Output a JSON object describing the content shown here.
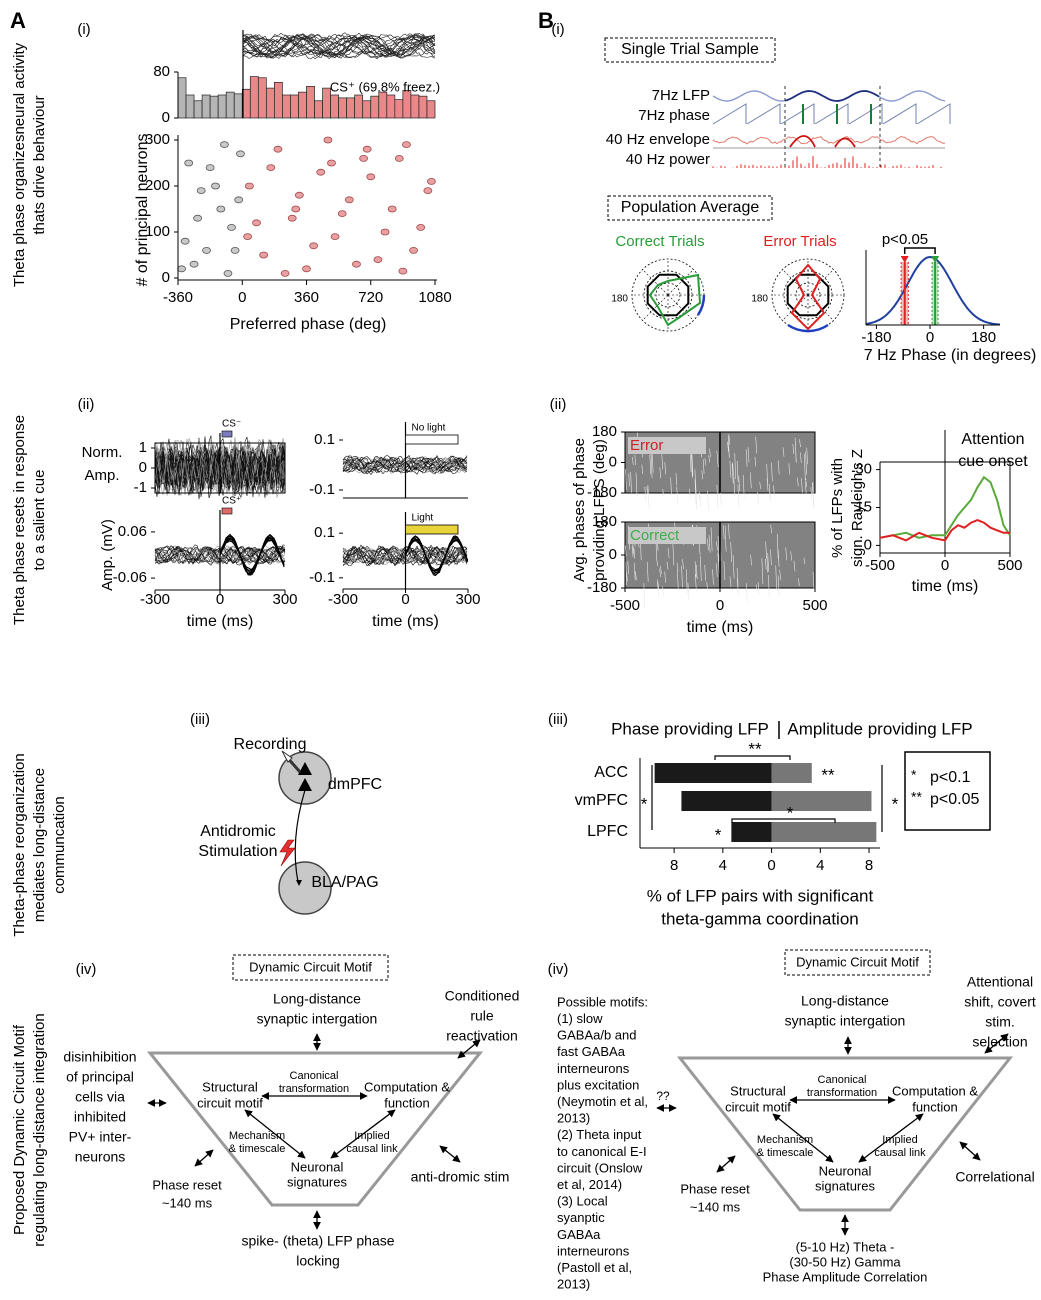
{
  "panel_letters": [
    "A",
    "B"
  ],
  "row_labels": [
    [
      "Theta phase organizesneural activity",
      "thats drive behaviour"
    ],
    [
      "Theta phase resets in response",
      "to a salient cue"
    ],
    [
      "Theta-phase reorganization",
      "mediates long-distance",
      "communcation"
    ],
    [
      "Proposed Dynamic Circuit Motif",
      "regulating long-distance integration"
    ]
  ],
  "a_i": {
    "label": "(i)",
    "annotation": "CS⁺ (69.8% freez.)",
    "xlabel": "Preferred phase (deg)",
    "ylabel": "# of principal neurons",
    "xlim": [
      -360,
      1080
    ],
    "xticks": [
      -360,
      0,
      360,
      720,
      1080
    ],
    "histogram": {
      "type": "histogram",
      "ylim": [
        0,
        80
      ],
      "yticks": [
        0,
        80
      ],
      "pre": {
        "color": "#b5b5b5",
        "bins": [
          -360,
          -315,
          -270,
          -225,
          -180,
          -135,
          -90,
          -45,
          0
        ],
        "counts": [
          70,
          40,
          30,
          40,
          38,
          40,
          45,
          42
        ]
      },
      "post": {
        "color": "#e8888b",
        "bins": [
          0,
          45,
          90,
          135,
          180,
          225,
          270,
          315,
          360,
          405,
          450,
          495,
          540,
          585,
          630,
          675,
          720,
          765,
          810,
          855,
          900,
          945,
          990,
          1035,
          1080
        ],
        "counts": [
          50,
          72,
          70,
          52,
          62,
          40,
          40,
          45,
          55,
          30,
          52,
          40,
          35,
          35,
          40,
          30,
          38,
          45,
          40,
          32,
          48,
          40,
          38,
          30
        ]
      }
    },
    "scatter": {
      "type": "scatter",
      "ylim": [
        0,
        300
      ],
      "yticks": [
        0,
        100,
        200,
        300
      ],
      "series": [
        {
          "color": "#c9c9c9",
          "x": [
            -340,
            -300,
            -250,
            -200,
            -150,
            -100,
            -60,
            -20,
            -320,
            -270,
            -180,
            -120,
            -40,
            -230,
            -80,
            -10
          ],
          "y": [
            20,
            250,
            130,
            60,
            200,
            290,
            110,
            170,
            80,
            30,
            240,
            150,
            60,
            190,
            10,
            270
          ]
        },
        {
          "color": "#e8a0a2",
          "x": [
            40,
            120,
            200,
            280,
            360,
            440,
            520,
            600,
            680,
            760,
            840,
            920,
            1000,
            1060,
            80,
            160,
            240,
            320,
            400,
            480,
            560,
            640,
            720,
            800,
            880,
            960,
            1040,
            30,
            300,
            700,
            900,
            500
          ],
          "y": [
            200,
            50,
            280,
            130,
            20,
            230,
            90,
            170,
            260,
            40,
            150,
            290,
            110,
            210,
            120,
            240,
            10,
            180,
            70,
            300,
            140,
            30,
            220,
            100,
            260,
            60,
            190,
            90,
            150,
            280,
            15,
            250
          ]
        }
      ]
    }
  },
  "b_i": {
    "label": "(i)",
    "single_trial_title": "Single Trial Sample",
    "trace_labels": [
      "7Hz LFP",
      "7Hz phase",
      "40 Hz envelope",
      "40 Hz power"
    ],
    "population_title": "Population Average",
    "polar": [
      {
        "title": "Correct Trials",
        "tick": "180",
        "color": "#2a9d3a"
      },
      {
        "title": "Error Trials",
        "tick": "180",
        "color": "#e02020"
      }
    ],
    "phase_plot": {
      "annotation": "p<0.05",
      "xlabel": "7 Hz Phase (in degrees)",
      "xlim": [
        -215,
        235
      ],
      "xticks": [
        -180,
        0,
        180
      ],
      "error_mean": -85,
      "error_color": "#e02020",
      "correct_mean": 17,
      "correct_color": "#2a9d3a",
      "curve_color": "#2040a0"
    }
  },
  "a_ii": {
    "label": "(ii)",
    "xlim": [
      -300,
      300
    ],
    "xticks": [
      -300,
      0,
      300
    ],
    "xlabel": "time (ms)",
    "plots": [
      {
        "ylabel": [
          "Norm.",
          "Amp."
        ],
        "ylim": [
          -1.25,
          1.25
        ],
        "yticks": [
          -1,
          0,
          1
        ],
        "cue": "CS⁻",
        "cue_color": "#7b7bbf"
      },
      {
        "ylim": [
          -0.132,
          0.132
        ],
        "yticks": [
          -0.1,
          0.1
        ],
        "cue": "No light",
        "cue_color": "#ffffff"
      },
      {
        "ylabel": [
          "Amp. (mV)"
        ],
        "ylim": [
          -0.091,
          0.091
        ],
        "yticks": [
          -0.06,
          0.06
        ],
        "cue": "CS⁺",
        "cue_color": "#e06a6a"
      },
      {
        "ylim": [
          -0.15,
          0.15
        ],
        "yticks": [
          -0.1,
          0.1
        ],
        "cue": "Light",
        "cue_color": "#e8d33a"
      }
    ]
  },
  "b_ii": {
    "label": "(ii)",
    "raster": {
      "ylabel": [
        "Avg. phases of phase",
        "providing LFPS (deg)"
      ],
      "panels": [
        {
          "label": "Error",
          "color": "#d0202a"
        },
        {
          "label": "Correct",
          "color": "#3cb04a"
        }
      ],
      "ylim": [
        -180,
        180
      ],
      "yticks": [
        -180,
        0,
        180
      ],
      "xlim": [
        -500,
        500
      ],
      "xticks": [
        -500,
        0,
        500
      ],
      "xlabel": "time (ms)"
    },
    "rayleigh": {
      "type": "line",
      "annotation": [
        "Attention",
        "cue onset"
      ],
      "ylabel": [
        "% of LFPs with",
        "sign. Rayleigh's Z"
      ],
      "x": [
        -500,
        -400,
        -300,
        -200,
        -100,
        0,
        50,
        100,
        150,
        200,
        250,
        300,
        350,
        400,
        450,
        500
      ],
      "series": [
        {
          "color": "#5aaa3a",
          "values": [
            3,
            4,
            5,
            3,
            4,
            4,
            8,
            12,
            15,
            18,
            23,
            27,
            25,
            18,
            8,
            4
          ]
        },
        {
          "color": "#e02020",
          "values": [
            3,
            4,
            2,
            5,
            3,
            2,
            6,
            8,
            7,
            9,
            10,
            9,
            7,
            6,
            5,
            5
          ]
        }
      ],
      "xlim": [
        -500,
        500
      ],
      "xticks": [
        -500,
        0,
        500
      ],
      "ylim": [
        -3,
        33
      ],
      "yticks": [
        0,
        15,
        30
      ],
      "xlabel": "time (ms)"
    }
  },
  "a_iii": {
    "label": "(iii)",
    "recording": "Recording",
    "source": "dmPFC",
    "stimulation": [
      "Antidromic",
      "Stimulation"
    ],
    "target": "BLA/PAG"
  },
  "b_iii": {
    "type": "bar",
    "label": "(iii)",
    "left_title": "Phase providing LFP",
    "right_title": "Amplitude providing LFP",
    "categories": [
      "ACC",
      "vmPFC",
      "LPFC"
    ],
    "series": [
      {
        "color": "#1a1a1a",
        "values": [
          -9.6,
          -7.4,
          -3.3
        ]
      },
      {
        "color": "#777777",
        "values": [
          3.3,
          8.2,
          8.6
        ]
      }
    ],
    "xlim": [
      -10.8,
      8.9
    ],
    "xticks": [
      {
        "value": -8,
        "label": "8"
      },
      {
        "value": -4,
        "label": "4"
      },
      0,
      4,
      8
    ],
    "xlabel": [
      "% of LFP pairs with significant",
      "theta-gamma coordination"
    ],
    "significance": [
      "**",
      "**",
      "*",
      "*",
      "*",
      "*"
    ],
    "legend": [
      {
        "symbol": "*",
        "text": "p<0.1"
      },
      {
        "symbol": "**",
        "text": "p<0.05"
      }
    ]
  },
  "a_iv": {
    "label": "(iv)",
    "box": "Dynamic Circuit Motif",
    "top": [
      "Long-distance",
      "synaptic intergation"
    ],
    "top_right": [
      "Conditioned",
      "rule",
      "reactivation"
    ],
    "left": [
      "disinhibition",
      "of principal",
      "cells via",
      "inhibited",
      "PV+ inter-",
      "neurons"
    ],
    "canonical": [
      "Canonical",
      "transformation"
    ],
    "structural": [
      "Structural",
      "circuit motif"
    ],
    "computation": [
      "Computation &",
      "function"
    ],
    "mechanism": [
      "Mechanism",
      "& timescale"
    ],
    "implied": [
      "Implied",
      "causal link"
    ],
    "signatures": [
      "Neuronal",
      "signatures"
    ],
    "reset": [
      "Phase reset",
      "~140 ms"
    ],
    "right": [
      "anti-dromic stim"
    ],
    "bottom": [
      "spike- (theta) LFP phase",
      "locking"
    ]
  },
  "b_iv": {
    "label": "(iv)",
    "box": "Dynamic Circuit Motif",
    "top": [
      "Long-distance",
      "synaptic intergation"
    ],
    "top_right": [
      "Attentional",
      "shift, covert",
      "stim.",
      "selection"
    ],
    "left": [
      "Possible motifs:",
      "(1) slow",
      "GABAa/b and",
      "fast GABAa",
      "interneurons",
      "plus excitation",
      "(Neymotin et al,",
      "2013)",
      "(2) Theta input",
      "to canonical E-I",
      "circuit (Onslow",
      "et al, 2014)",
      "(3) Local",
      "syanptic",
      "GABAa",
      "interneurons",
      "(Pastoll et al,",
      "2013)"
    ],
    "left_marker": "??",
    "canonical": [
      "Canonical",
      "transformation"
    ],
    "structural": [
      "Structural",
      "circuit motif"
    ],
    "computation": [
      "Computation &",
      "function"
    ],
    "mechanism": [
      "Mechanism",
      "& timescale"
    ],
    "implied": [
      "Implied",
      "causal link"
    ],
    "signatures": [
      "Neuronal",
      "signatures"
    ],
    "reset": [
      "Phase reset",
      "~140 ms"
    ],
    "right": [
      "Correlational"
    ],
    "bottom": [
      "(5-10 Hz) Theta -",
      "(30-50 Hz) Gamma",
      "Phase Amplitude Correlation"
    ]
  }
}
